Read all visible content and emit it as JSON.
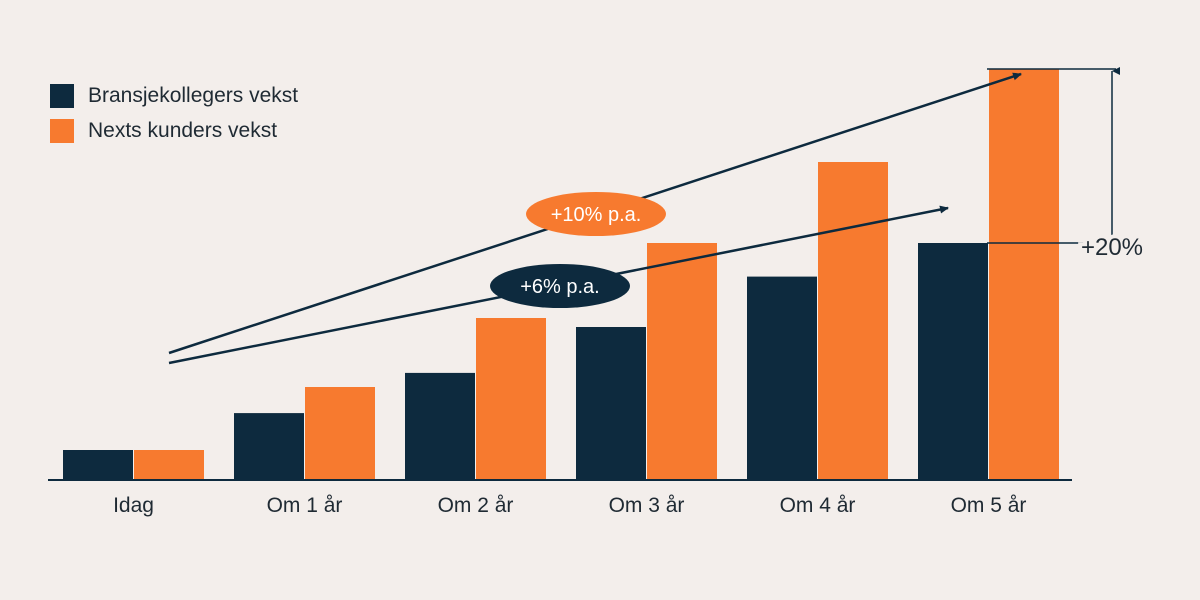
{
  "colors": {
    "background": "#f3eeeb",
    "navy": "#0d2a3e",
    "orange": "#f77a2f",
    "axis": "#0d2a3e",
    "text": "#1f2a33"
  },
  "chart_data": {
    "type": "bar",
    "title": "",
    "xlabel": "",
    "ylabel": "",
    "categories": [
      "Idag",
      "Om 1 år",
      "Om 2 år",
      "Om 3 år",
      "Om 4 år",
      "Om 5 år"
    ],
    "series": [
      {
        "name": "Bransjekollegers vekst",
        "color": "#0d2a3e",
        "values": [
          100,
          223,
          357,
          510,
          678,
          790
        ]
      },
      {
        "name": "Nexts kunders vekst",
        "color": "#f77a2f",
        "values": [
          100,
          310,
          540,
          790,
          1060,
          1370
        ]
      }
    ],
    "ylim": [
      0,
      1400
    ],
    "grid": false,
    "legend_position": "top-left",
    "annotations": {
      "trend_orange_label": "+10% p.a.",
      "trend_navy_label": "+6% p.a.",
      "difference_label": "+20%"
    }
  }
}
